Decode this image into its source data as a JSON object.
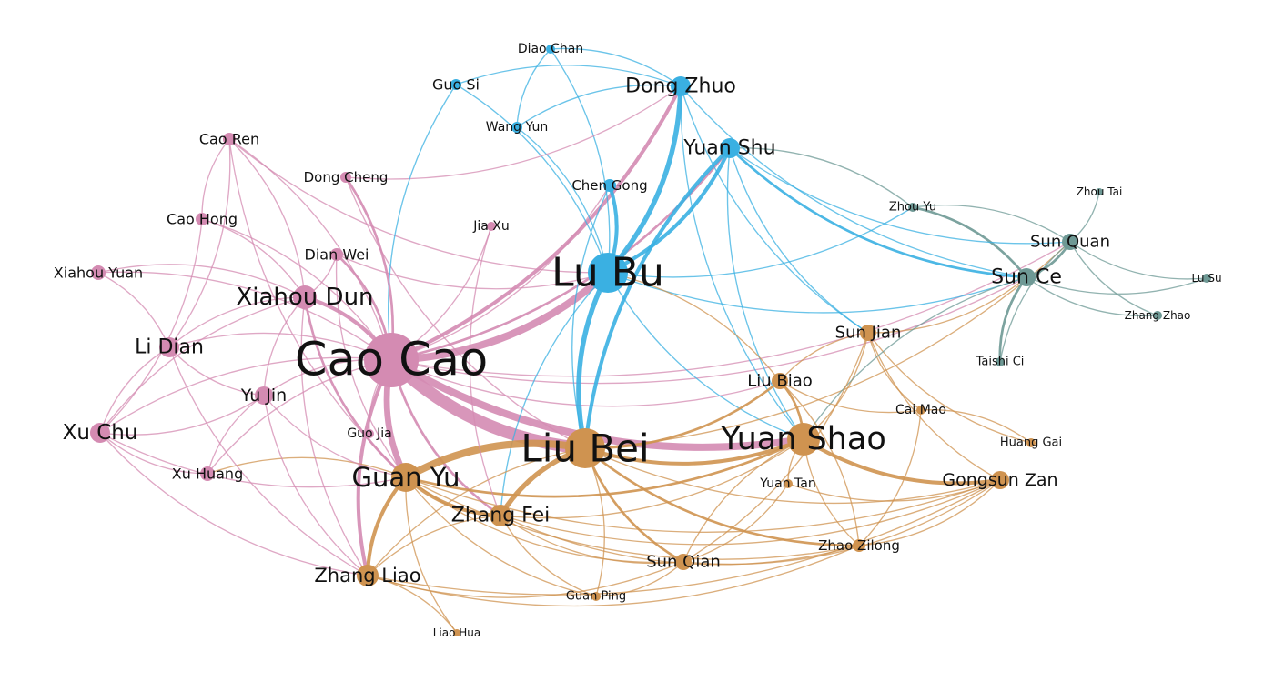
{
  "graph": {
    "colors": {
      "pink": "#d48bb2",
      "blue": "#3ab0e2",
      "orange": "#cf9350",
      "teal": "#6e9995"
    },
    "nodes": [
      {
        "id": "cao-cao",
        "label": "Cao Cao",
        "group": "pink",
        "degree": 10
      },
      {
        "id": "lu-bu",
        "label": "Lu Bu",
        "group": "blue",
        "degree": 8
      },
      {
        "id": "liu-bei",
        "label": "Liu Bei",
        "group": "orange",
        "degree": 8
      },
      {
        "id": "yuan-shao",
        "label": "Yuan Shao",
        "group": "orange",
        "degree": 7
      },
      {
        "id": "guan-yu",
        "label": "Guan Yu",
        "group": "orange",
        "degree": 6
      },
      {
        "id": "xiahou-dun",
        "label": "Xiahou Dun",
        "group": "pink",
        "degree": 5
      },
      {
        "id": "dong-zhuo",
        "label": "Dong Zhuo",
        "group": "blue",
        "degree": 4
      },
      {
        "id": "yuan-shu",
        "label": "Yuan Shu",
        "group": "blue",
        "degree": 4
      },
      {
        "id": "zhang-fei",
        "label": "Zhang Fei",
        "group": "orange",
        "degree": 4
      },
      {
        "id": "li-dian",
        "label": "Li Dian",
        "group": "pink",
        "degree": 4
      },
      {
        "id": "xu-chu",
        "label": "Xu Chu",
        "group": "pink",
        "degree": 4
      },
      {
        "id": "zhang-liao",
        "label": "Zhang Liao",
        "group": "orange",
        "degree": 4
      },
      {
        "id": "sun-ce",
        "label": "Sun Ce",
        "group": "teal",
        "degree": 4
      },
      {
        "id": "sun-quan",
        "label": "Sun Quan",
        "group": "teal",
        "degree": 3
      },
      {
        "id": "gongsun-zan",
        "label": "Gongsun Zan",
        "group": "orange",
        "degree": 3
      },
      {
        "id": "yu-jin",
        "label": "Yu Jin",
        "group": "pink",
        "degree": 3
      },
      {
        "id": "sun-jian",
        "label": "Sun Jian",
        "group": "orange",
        "degree": 3
      },
      {
        "id": "liu-biao",
        "label": "Liu Biao",
        "group": "orange",
        "degree": 3
      },
      {
        "id": "sun-qian",
        "label": "Sun Qian",
        "group": "orange",
        "degree": 3
      },
      {
        "id": "cao-ren",
        "label": "Cao Ren",
        "group": "pink",
        "degree": 2
      },
      {
        "id": "xiahou-yuan",
        "label": "Xiahou Yuan",
        "group": "pink",
        "degree": 2
      },
      {
        "id": "dian-wei",
        "label": "Dian Wei",
        "group": "pink",
        "degree": 2
      },
      {
        "id": "cao-hong",
        "label": "Cao Hong",
        "group": "pink",
        "degree": 2
      },
      {
        "id": "xu-huang",
        "label": "Xu Huang",
        "group": "pink",
        "degree": 2
      },
      {
        "id": "dong-cheng",
        "label": "Dong Cheng",
        "group": "pink",
        "degree": 2
      },
      {
        "id": "guo-si",
        "label": "Guo Si",
        "group": "blue",
        "degree": 2
      },
      {
        "id": "wang-yun",
        "label": "Wang Yun",
        "group": "blue",
        "degree": 2
      },
      {
        "id": "chen-gong",
        "label": "Chen Gong",
        "group": "blue",
        "degree": 2
      },
      {
        "id": "zhao-zilong",
        "label": "Zhao Zilong",
        "group": "orange",
        "degree": 2
      },
      {
        "id": "cai-mao",
        "label": "Cai Mao",
        "group": "orange",
        "degree": 1
      },
      {
        "id": "diao-chan",
        "label": "Diao Chan",
        "group": "blue",
        "degree": 1
      },
      {
        "id": "jia-xu",
        "label": "Jia Xu",
        "group": "pink",
        "degree": 1
      },
      {
        "id": "guo-jia",
        "label": "Guo Jia",
        "group": "pink",
        "degree": 1
      },
      {
        "id": "yuan-tan",
        "label": "Yuan Tan",
        "group": "orange",
        "degree": 1
      },
      {
        "id": "guan-ping",
        "label": "Guan Ping",
        "group": "orange",
        "degree": 1
      },
      {
        "id": "liao-hua",
        "label": "Liao Hua",
        "group": "orange",
        "degree": 1
      },
      {
        "id": "huang-gai",
        "label": "Huang Gai",
        "group": "orange",
        "degree": 1
      },
      {
        "id": "zhou-yu",
        "label": "Zhou Yu",
        "group": "teal",
        "degree": 1
      },
      {
        "id": "zhou-tai",
        "label": "Zhou Tai",
        "group": "teal",
        "degree": 1
      },
      {
        "id": "lu-su",
        "label": "Lu Su",
        "group": "teal",
        "degree": 1
      },
      {
        "id": "zhang-zhao",
        "label": "Zhang Zhao",
        "group": "teal",
        "degree": 1
      },
      {
        "id": "taishi-ci",
        "label": "Taishi Ci",
        "group": "teal",
        "degree": 1
      }
    ],
    "edges": [
      [
        "cao-cao",
        "liu-bei",
        10
      ],
      [
        "cao-cao",
        "lu-bu",
        6
      ],
      [
        "cao-cao",
        "yuan-shao",
        6
      ],
      [
        "cao-cao",
        "guan-yu",
        5
      ],
      [
        "cao-cao",
        "xiahou-dun",
        3
      ],
      [
        "cao-cao",
        "dong-zhuo",
        3
      ],
      [
        "cao-cao",
        "yuan-shu",
        2
      ],
      [
        "cao-cao",
        "zhang-fei",
        2
      ],
      [
        "cao-cao",
        "li-dian",
        1
      ],
      [
        "cao-cao",
        "xu-chu",
        1
      ],
      [
        "cao-cao",
        "yu-jin",
        1
      ],
      [
        "cao-cao",
        "dian-wei",
        2
      ],
      [
        "cao-cao",
        "xiahou-yuan",
        1
      ],
      [
        "cao-cao",
        "cao-ren",
        1
      ],
      [
        "cao-cao",
        "cao-hong",
        1
      ],
      [
        "cao-cao",
        "xu-huang",
        1
      ],
      [
        "cao-cao",
        "dong-cheng",
        2
      ],
      [
        "cao-cao",
        "zhang-liao",
        3
      ],
      [
        "cao-cao",
        "chen-gong",
        1
      ],
      [
        "cao-cao",
        "liu-biao",
        1
      ],
      [
        "cao-cao",
        "sun-quan",
        1
      ],
      [
        "cao-cao",
        "guo-jia",
        1
      ],
      [
        "cao-cao",
        "jia-xu",
        1
      ],
      [
        "cao-cao",
        "sun-ce",
        1
      ],
      [
        "lu-bu",
        "dong-zhuo",
        4
      ],
      [
        "lu-bu",
        "chen-gong",
        3
      ],
      [
        "lu-bu",
        "yuan-shu",
        3
      ],
      [
        "lu-bu",
        "liu-bei",
        4
      ],
      [
        "lu-bu",
        "wang-yun",
        1
      ],
      [
        "lu-bu",
        "diao-chan",
        1
      ],
      [
        "lu-bu",
        "guo-si",
        1
      ],
      [
        "lu-bu",
        "zhang-fei",
        1
      ],
      [
        "lu-bu",
        "yuan-shao",
        1
      ],
      [
        "lu-bu",
        "sun-ce",
        1
      ],
      [
        "dong-zhuo",
        "wang-yun",
        1
      ],
      [
        "dong-zhuo",
        "guo-si",
        1
      ],
      [
        "dong-zhuo",
        "diao-chan",
        1
      ],
      [
        "dong-zhuo",
        "yuan-shao",
        1
      ],
      [
        "dong-zhuo",
        "sun-jian",
        1
      ],
      [
        "yuan-shu",
        "sun-ce",
        2
      ],
      [
        "yuan-shu",
        "liu-bei",
        3
      ],
      [
        "yuan-shu",
        "yuan-shao",
        1
      ],
      [
        "yuan-shu",
        "sun-jian",
        1
      ],
      [
        "liu-bei",
        "guan-yu",
        6
      ],
      [
        "liu-bei",
        "zhang-fei",
        4
      ],
      [
        "liu-bei",
        "yuan-shao",
        3
      ],
      [
        "liu-bei",
        "sun-qian",
        2
      ],
      [
        "liu-bei",
        "zhao-zilong",
        2
      ],
      [
        "liu-bei",
        "liu-biao",
        2
      ],
      [
        "liu-bei",
        "gongsun-zan",
        1
      ],
      [
        "liu-bei",
        "zhang-liao",
        1
      ],
      [
        "liu-bei",
        "sun-quan",
        1
      ],
      [
        "guan-yu",
        "zhang-fei",
        3
      ],
      [
        "guan-yu",
        "zhang-liao",
        3
      ],
      [
        "guan-yu",
        "sun-qian",
        1
      ],
      [
        "guan-yu",
        "guan-ping",
        1
      ],
      [
        "guan-yu",
        "liao-hua",
        1
      ],
      [
        "guan-yu",
        "yuan-shao",
        2
      ],
      [
        "guan-yu",
        "xu-huang",
        1
      ],
      [
        "guan-yu",
        "gongsun-zan",
        1
      ],
      [
        "guan-yu",
        "zhao-zilong",
        1
      ],
      [
        "yuan-shao",
        "gongsun-zan",
        3
      ],
      [
        "yuan-shao",
        "liu-biao",
        2
      ],
      [
        "yuan-shao",
        "yuan-tan",
        1
      ],
      [
        "yuan-shao",
        "sun-jian",
        1
      ],
      [
        "yuan-shao",
        "zhao-zilong",
        1
      ],
      [
        "yuan-shao",
        "sun-qian",
        1
      ],
      [
        "sun-jian",
        "liu-biao",
        1
      ],
      [
        "sun-jian",
        "cai-mao",
        1
      ],
      [
        "sun-jian",
        "huang-gai",
        1
      ],
      [
        "sun-jian",
        "gongsun-zan",
        1
      ],
      [
        "sun-jian",
        "sun-ce",
        1
      ],
      [
        "sun-ce",
        "sun-quan",
        2
      ],
      [
        "sun-ce",
        "zhou-yu",
        2
      ],
      [
        "sun-ce",
        "taishi-ci",
        2
      ],
      [
        "sun-ce",
        "zhang-zhao",
        1
      ],
      [
        "sun-ce",
        "lu-su",
        1
      ],
      [
        "sun-ce",
        "yuan-shao",
        1
      ],
      [
        "sun-quan",
        "zhou-yu",
        1
      ],
      [
        "sun-quan",
        "zhou-tai",
        1
      ],
      [
        "sun-quan",
        "lu-su",
        1
      ],
      [
        "sun-quan",
        "zhang-zhao",
        1
      ],
      [
        "sun-quan",
        "taishi-ci",
        1
      ],
      [
        "xiahou-dun",
        "dian-wei",
        1
      ],
      [
        "xiahou-dun",
        "xiahou-yuan",
        1
      ],
      [
        "xiahou-dun",
        "li-dian",
        1
      ],
      [
        "xiahou-dun",
        "cao-ren",
        1
      ],
      [
        "xiahou-dun",
        "cao-hong",
        1
      ],
      [
        "xiahou-dun",
        "xu-chu",
        1
      ],
      [
        "xiahou-dun",
        "yu-jin",
        1
      ],
      [
        "xiahou-dun",
        "guan-yu",
        2
      ],
      [
        "xiahou-dun",
        "zhang-liao",
        1
      ],
      [
        "li-dian",
        "yu-jin",
        1
      ],
      [
        "li-dian",
        "xu-chu",
        1
      ],
      [
        "li-dian",
        "xiahou-yuan",
        1
      ],
      [
        "li-dian",
        "cao-ren",
        1
      ],
      [
        "li-dian",
        "zhang-liao",
        1
      ],
      [
        "xu-chu",
        "xu-huang",
        1
      ],
      [
        "xu-chu",
        "zhang-liao",
        1
      ],
      [
        "xu-chu",
        "cao-hong",
        1
      ],
      [
        "xu-chu",
        "guan-yu",
        1
      ],
      [
        "xu-chu",
        "yu-jin",
        1
      ],
      [
        "yu-jin",
        "zhang-liao",
        1
      ],
      [
        "yu-jin",
        "xu-huang",
        1
      ],
      [
        "yu-jin",
        "guan-yu",
        1
      ],
      [
        "cao-ren",
        "cao-hong",
        1
      ],
      [
        "cao-ren",
        "lu-bu",
        1
      ],
      [
        "cao-ren",
        "guan-yu",
        1
      ],
      [
        "dong-cheng",
        "liu-bei",
        1
      ],
      [
        "dong-cheng",
        "dong-zhuo",
        1
      ],
      [
        "dian-wei",
        "lu-bu",
        1
      ],
      [
        "dian-wei",
        "guan-yu",
        1
      ],
      [
        "guo-si",
        "cao-cao",
        1
      ],
      [
        "diao-chan",
        "wang-yun",
        1
      ],
      [
        "chen-gong",
        "liu-bei",
        1
      ],
      [
        "jia-xu",
        "zhang-fei",
        1
      ],
      [
        "zhang-fei",
        "zhang-liao",
        1
      ],
      [
        "zhang-fei",
        "sun-qian",
        1
      ],
      [
        "zhang-fei",
        "gongsun-zan",
        1
      ],
      [
        "zhang-fei",
        "zhao-zilong",
        1
      ],
      [
        "zhang-fei",
        "guan-ping",
        1
      ],
      [
        "zhang-fei",
        "yuan-shao",
        1
      ],
      [
        "zhang-liao",
        "sun-qian",
        1
      ],
      [
        "zhang-liao",
        "zhao-zilong",
        1
      ],
      [
        "zhang-liao",
        "gongsun-zan",
        1
      ],
      [
        "sun-qian",
        "gongsun-zan",
        1
      ],
      [
        "sun-qian",
        "yuan-tan",
        1
      ],
      [
        "sun-qian",
        "sun-jian",
        1
      ],
      [
        "zhao-zilong",
        "gongsun-zan",
        1
      ],
      [
        "zhao-zilong",
        "liu-biao",
        1
      ],
      [
        "zhao-zilong",
        "cai-mao",
        1
      ],
      [
        "liu-biao",
        "cai-mao",
        1
      ],
      [
        "liu-biao",
        "lu-bu",
        1
      ],
      [
        "yuan-tan",
        "gongsun-zan",
        1
      ],
      [
        "guan-ping",
        "sun-qian",
        1
      ],
      [
        "guan-ping",
        "liu-bei",
        1
      ],
      [
        "liao-hua",
        "zhang-liao",
        1
      ],
      [
        "huang-gai",
        "cai-mao",
        1
      ],
      [
        "zhou-yu",
        "yuan-shu",
        1
      ],
      [
        "lu-bu",
        "zhou-yu",
        1
      ],
      [
        "dong-zhuo",
        "sun-ce",
        1
      ],
      [
        "yuan-shu",
        "sun-quan",
        1
      ]
    ]
  }
}
